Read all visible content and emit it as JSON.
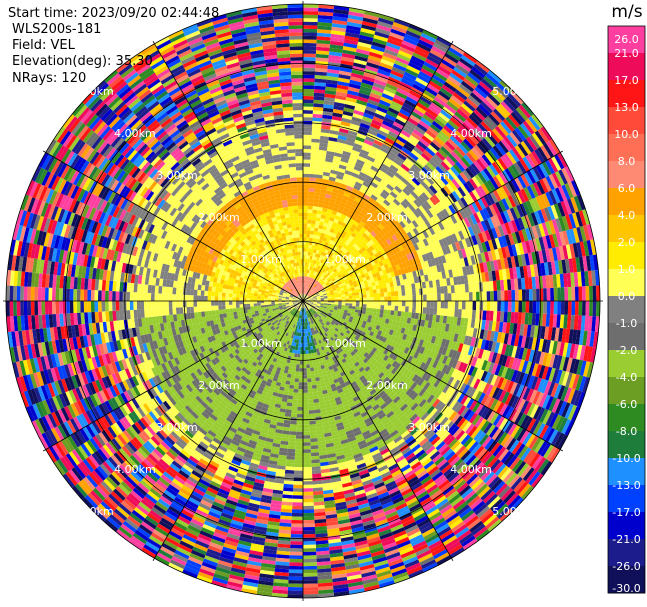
{
  "header": {
    "start_time": "Start time: 2023/09/20 02:44:48",
    "site": "WLS200s-181",
    "field": "Field: VEL",
    "elevation": "Elevation(deg): 35.30",
    "nrays": "NRays: 120"
  },
  "colorbar": {
    "unit": "m/s",
    "ticks": [
      "26.0",
      "21.0",
      "17.0",
      "13.0",
      "10.0",
      "8.0",
      "6.0",
      "4.0",
      "2.0",
      "1.0",
      "0.0",
      "-1.0",
      "-2.0",
      "-4.0",
      "-6.0",
      "-8.0",
      "-10.0",
      "-13.0",
      "-17.0",
      "-21.0",
      "-26.0",
      "-30.0"
    ],
    "colors": [
      "#ff3fa0",
      "#ee0b5a",
      "#ff1515",
      "#ff4a3a",
      "#ff6f55",
      "#ff8a74",
      "#ffa200",
      "#ffc600",
      "#ffec00",
      "#ffff55",
      "#808080",
      "#6e6e6e",
      "#9acd32",
      "#6b9e23",
      "#2e8b22",
      "#1f7d3c",
      "#1e90ff",
      "#0040ff",
      "#0000cd",
      "#1c1c8c",
      "#10105a"
    ]
  },
  "chart_data": {
    "type": "heatmap",
    "projection": "polar-ppi",
    "nrays": 120,
    "range_rings_km": [
      1.0,
      2.0,
      3.0,
      4.0,
      5.0
    ],
    "ring_labels": [
      "1.00km",
      "2.00km",
      "3.00km",
      "4.00km",
      "5.00km"
    ],
    "azimuth_lines_deg": [
      0,
      30,
      60,
      90,
      120,
      150,
      180,
      210,
      240,
      270,
      300,
      330
    ],
    "velocity_regions": [
      {
        "description_value_ms": 7.0,
        "azimuth_from": 300,
        "azimuth_to": 60,
        "range_km": [
          0.1,
          1.0
        ]
      },
      {
        "description_value_ms": 5.0,
        "azimuth_from": 285,
        "azimuth_to": 75,
        "range_km": [
          1.0,
          2.1
        ]
      },
      {
        "description_value_ms": 1.5,
        "azimuth_from": 270,
        "azimuth_to": 90,
        "range_km": [
          0.4,
          1.6
        ]
      },
      {
        "description_value_ms": -6.0,
        "azimuth_from": 130,
        "azimuth_to": 230,
        "range_km": [
          0.2,
          2.1
        ]
      },
      {
        "description_value_ms": -2.5,
        "azimuth_from": 95,
        "azimuth_to": 265,
        "range_km": [
          0.3,
          2.8
        ]
      },
      {
        "description_value_ms": -10.0,
        "azimuth_from": 165,
        "azimuth_to": 195,
        "range_km": [
          0.1,
          0.9
        ]
      }
    ],
    "noise_beyond_km": 2.7
  }
}
